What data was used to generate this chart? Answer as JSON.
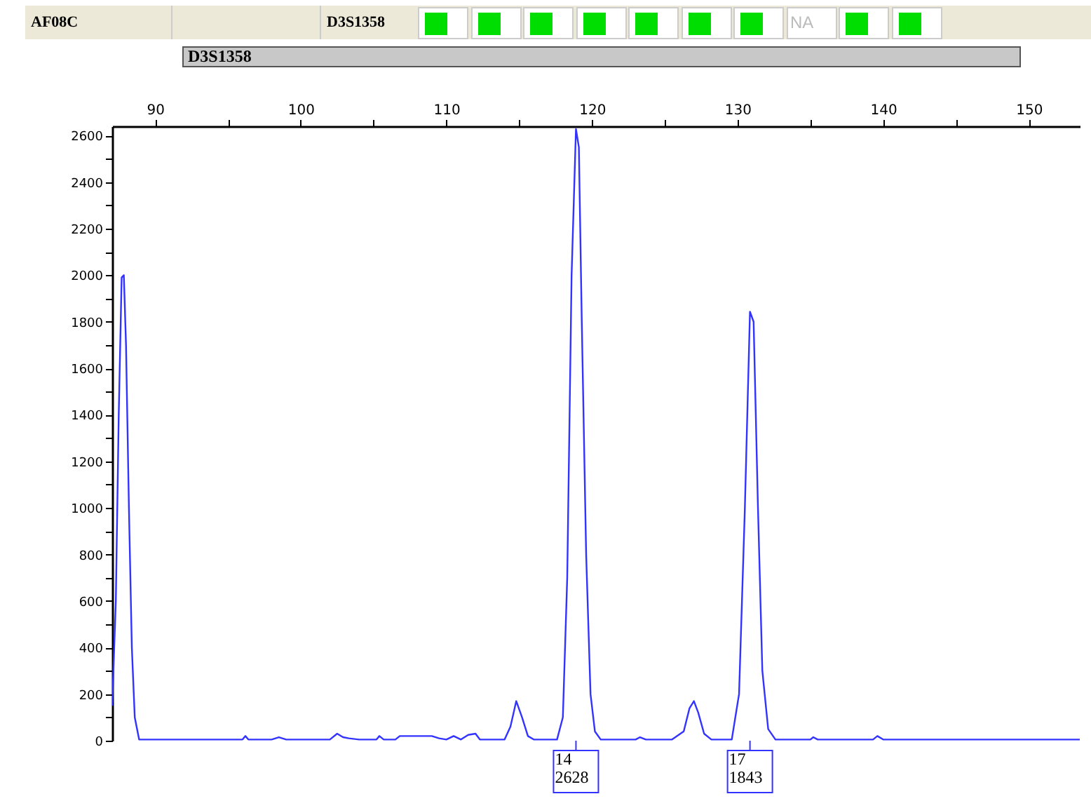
{
  "chart_data": {
    "type": "line",
    "x": [
      87.05,
      87.3,
      87.5,
      87.7,
      87.85,
      88.0,
      88.2,
      88.4,
      88.6,
      88.9,
      96,
      96.2,
      96.4,
      98,
      98.5,
      99,
      102,
      102.5,
      102.9,
      103.3,
      104,
      105.2,
      105.4,
      105.7,
      106.5,
      106.8,
      109,
      109.5,
      110,
      110.5,
      111,
      111.5,
      112,
      112.3,
      114,
      114.4,
      114.8,
      115.2,
      115.6,
      116,
      117.6,
      118,
      118.3,
      118.6,
      118.9,
      119.1,
      119.3,
      119.6,
      119.9,
      120.2,
      120.6,
      123,
      123.3,
      123.7,
      125.5,
      126.3,
      126.7,
      127.0,
      127.3,
      127.7,
      128.2,
      129.6,
      130.1,
      130.5,
      130.85,
      131.1,
      131.4,
      131.7,
      132.1,
      132.6,
      135,
      135.2,
      135.5,
      139.3,
      139.6,
      140,
      153.5
    ],
    "series": [
      {
        "color": "#3333ff",
        "values": [
          150,
          600,
          1400,
          1990,
          2000,
          1700,
          1000,
          400,
          100,
          5,
          5,
          20,
          5,
          5,
          15,
          5,
          5,
          30,
          15,
          10,
          5,
          5,
          20,
          5,
          5,
          20,
          20,
          10,
          5,
          20,
          5,
          25,
          30,
          5,
          5,
          60,
          170,
          100,
          20,
          5,
          5,
          100,
          700,
          2000,
          2628,
          2550,
          1800,
          800,
          200,
          40,
          5,
          5,
          15,
          5,
          5,
          40,
          140,
          170,
          120,
          30,
          5,
          5,
          200,
          1000,
          1843,
          1800,
          1000,
          300,
          50,
          5,
          5,
          15,
          5,
          5,
          20,
          5,
          5
        ]
      }
    ],
    "xlim": [
      87.05,
      153.5
    ],
    "xticks": [
      90,
      {
        "value": 95,
        "label": null
      },
      100,
      {
        "value": 105,
        "label": null
      },
      110,
      {
        "value": 115,
        "label": null
      },
      120,
      {
        "value": 125,
        "label": null
      },
      130,
      {
        "value": 135,
        "label": null
      },
      140,
      {
        "value": 145,
        "label": null
      },
      150
    ],
    "ylim": [
      0,
      2640
    ],
    "yticks": [
      0,
      {
        "value": 100,
        "label": null
      },
      200,
      {
        "value": 300,
        "label": null
      },
      400,
      {
        "value": 500,
        "label": null
      },
      600,
      {
        "value": 700,
        "label": null
      },
      800,
      {
        "value": 900,
        "label": null
      },
      1000,
      {
        "value": 1100,
        "label": null
      },
      1200,
      {
        "value": 1300,
        "label": null
      },
      1400,
      {
        "value": 1500,
        "label": null
      },
      1600,
      {
        "value": 1700,
        "label": null
      },
      1800,
      {
        "value": 1900,
        "label": null
      },
      2000,
      {
        "value": 2100,
        "label": null
      },
      2200,
      {
        "value": 2300,
        "label": null
      },
      2400,
      {
        "value": 2500,
        "label": null
      },
      2600
    ],
    "grid": false,
    "annotations": [
      "AF08C",
      "D3S1358",
      "NA",
      "D3S1358",
      {
        "text": "14\n2628",
        "x": 118.9
      },
      {
        "text": "17\n1843",
        "x": 130.85
      }
    ]
  }
}
